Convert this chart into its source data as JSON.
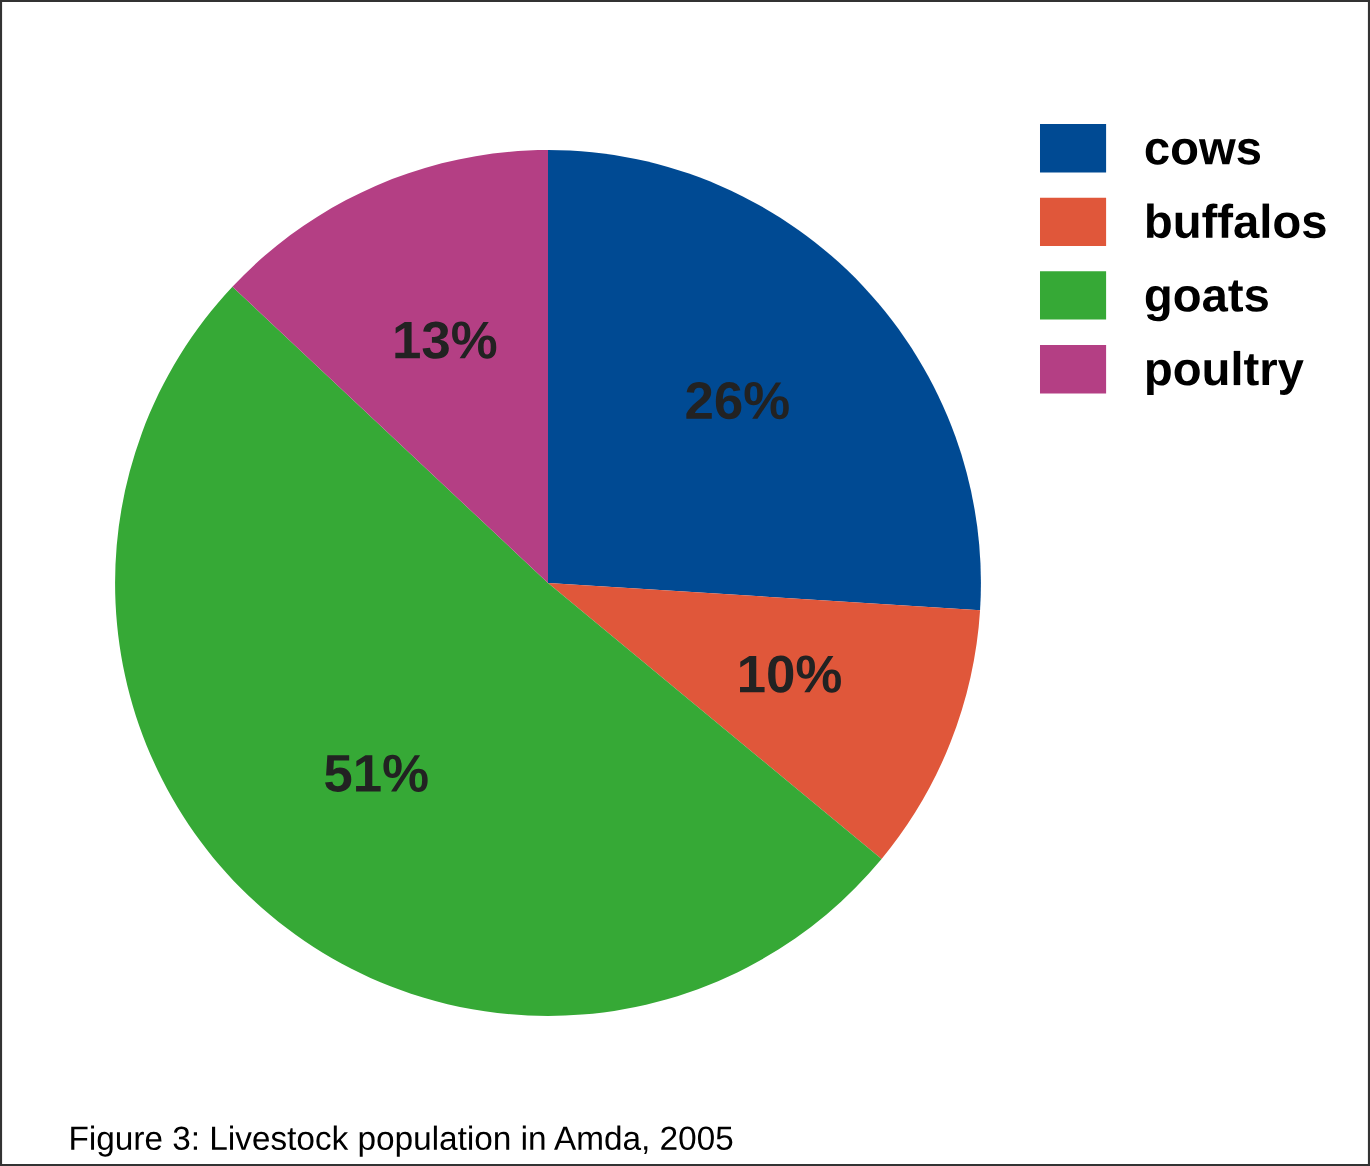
{
  "chart_data": {
    "type": "pie",
    "categories": [
      "cows",
      "buffalos",
      "goats",
      "poultry"
    ],
    "values": [
      26,
      10,
      51,
      13
    ],
    "colors": [
      "#004a93",
      "#e0573a",
      "#36a936",
      "#b43f84"
    ],
    "value_labels": [
      "26%",
      "10%",
      "51%",
      "13%"
    ],
    "legend": "top right",
    "annotations": [
      "Figure 3: Livestock population in Amda, 2005"
    ]
  }
}
